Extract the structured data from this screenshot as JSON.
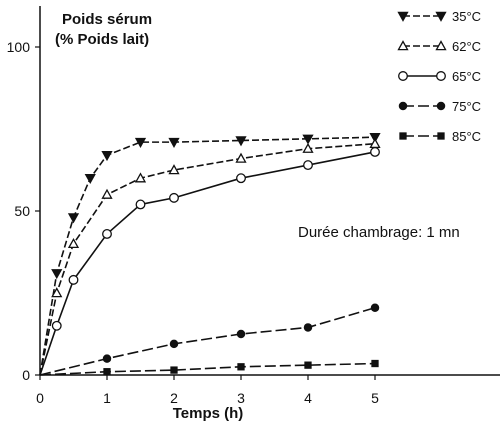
{
  "chart_data": {
    "type": "line",
    "title": "",
    "ylabel": "Poids sérum",
    "ylabel_line2": "(% Poids lait)",
    "xlabel": "Temps (h)",
    "xlim": [
      0,
      6
    ],
    "ylim": [
      0,
      110
    ],
    "xticks": [
      0,
      1,
      2,
      3,
      4,
      5
    ],
    "yticks": [
      0,
      50,
      100
    ],
    "grid": false,
    "legend_position": "top-right",
    "annotation": "Durée chambrage: 1 mn",
    "series": [
      {
        "name": "35°C",
        "marker": "triangle-down",
        "x": [
          0,
          0.25,
          0.5,
          0.75,
          1,
          1.5,
          2,
          3,
          4,
          5
        ],
        "y": [
          0,
          31,
          48,
          60,
          67,
          71,
          71,
          71.5,
          72,
          72.5
        ]
      },
      {
        "name": "62°C",
        "marker": "triangle-up-open",
        "x": [
          0,
          0.25,
          0.5,
          1,
          1.5,
          2,
          3,
          4,
          5
        ],
        "y": [
          0,
          25,
          40,
          55,
          60,
          62.5,
          66,
          69,
          70.5
        ]
      },
      {
        "name": "65°C",
        "marker": "circle-open",
        "x": [
          0,
          0.25,
          0.5,
          1,
          1.5,
          2,
          3,
          4,
          5
        ],
        "y": [
          0,
          15,
          29,
          43,
          52,
          54,
          60,
          64,
          68
        ]
      },
      {
        "name": "75°C",
        "marker": "circle-filled",
        "x": [
          0,
          1,
          2,
          3,
          4,
          5
        ],
        "y": [
          0,
          5,
          9.5,
          12.5,
          14.5,
          20.5
        ]
      },
      {
        "name": "85°C",
        "marker": "square-filled",
        "x": [
          0,
          1,
          2,
          3,
          4,
          5
        ],
        "y": [
          0,
          1,
          1.5,
          2.5,
          3,
          3.5
        ]
      }
    ]
  }
}
